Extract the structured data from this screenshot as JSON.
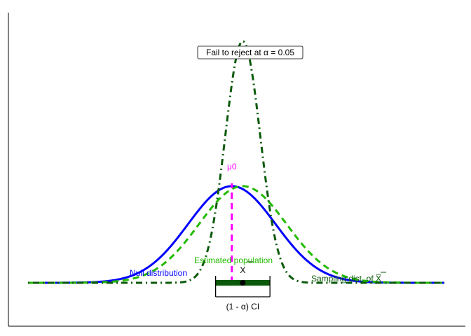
{
  "chart_data": {
    "type": "line",
    "title": "",
    "xlabel": "",
    "ylabel": "",
    "grid": false,
    "x_range": [
      -4.75,
      4.75
    ],
    "y_range": [
      0,
      1.04
    ],
    "series": [
      {
        "name": "Null distribution",
        "mean": -0.1,
        "sd": 1.0,
        "color": "#0000ff",
        "style": "solid"
      },
      {
        "name": "Estimated population",
        "mean": 0.15,
        "sd": 1.0,
        "color": "#22bb00",
        "style": "dashed"
      },
      {
        "name": "Sampling dist. of X̅",
        "mean": 0.15,
        "sd": 0.4,
        "color": "#0b5a0b",
        "style": "dot-dash"
      }
    ],
    "mu0": {
      "label": "μ0",
      "x": -0.1,
      "color": "#ff00ff"
    },
    "sample_mean": {
      "label": "X",
      "x": 0.15
    },
    "confidence_interval": {
      "label": "(1 - α) CI",
      "lower": -0.47,
      "upper": 0.77,
      "color": "#0b5a0b"
    },
    "decision_label": "Fail to reject at α = 0.05"
  }
}
